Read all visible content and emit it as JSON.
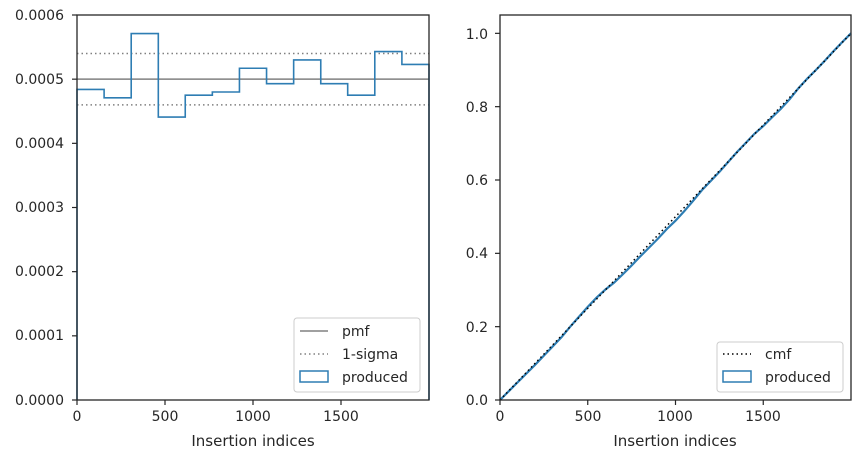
{
  "chart_data": [
    {
      "type": "step",
      "xlabel": "Insertion indices",
      "ylabel": "",
      "xlim": [
        0,
        2000
      ],
      "ylim": [
        0,
        0.0006
      ],
      "xticks": [
        0,
        500,
        1000,
        1500
      ],
      "xtick_labels": [
        "0",
        "500",
        "1000",
        "1500"
      ],
      "yticks": [
        0,
        0.0001,
        0.0002,
        0.0003,
        0.0004,
        0.0005,
        0.0006
      ],
      "ytick_labels": [
        "0.0000",
        "0.0001",
        "0.0002",
        "0.0003",
        "0.0004",
        "0.0005",
        "0.0006"
      ],
      "grid": false,
      "legend_position": "lower right",
      "reference_lines": [
        {
          "name": "pmf",
          "y": 0.0005,
          "style": "solid",
          "color": "#808080"
        },
        {
          "name": "1-sigma",
          "y": 0.00054,
          "style": "dotted",
          "color": "#808080"
        },
        {
          "name": "1-sigma",
          "y": 0.00046,
          "style": "dotted",
          "color": "#808080"
        }
      ],
      "series": [
        {
          "name": "produced",
          "color": "#2e7db3",
          "bin_edges": [
            0,
            154,
            308,
            462,
            615,
            769,
            923,
            1077,
            1231,
            1385,
            1538,
            1692,
            1846,
            2000
          ],
          "values": [
            0.000484,
            0.000471,
            0.000571,
            0.000441,
            0.000475,
            0.00048,
            0.000517,
            0.000493,
            0.00053,
            0.000493,
            0.000475,
            0.000543,
            0.000523
          ]
        }
      ],
      "legend": [
        {
          "label": "pmf",
          "kind": "solid-line"
        },
        {
          "label": "1-sigma",
          "kind": "dotted-line"
        },
        {
          "label": "produced",
          "kind": "patch"
        }
      ]
    },
    {
      "type": "line",
      "xlabel": "Insertion indices",
      "ylabel": "",
      "xlim": [
        0,
        2000
      ],
      "ylim": [
        0,
        1.05
      ],
      "xticks": [
        0,
        500,
        1000,
        1500
      ],
      "xtick_labels": [
        "0",
        "500",
        "1000",
        "1500"
      ],
      "yticks": [
        0,
        0.2,
        0.4,
        0.6,
        0.8,
        1.0
      ],
      "ytick_labels": [
        "0.0",
        "0.2",
        "0.4",
        "0.6",
        "0.8",
        "1.0"
      ],
      "grid": false,
      "legend_position": "lower right",
      "series": [
        {
          "name": "cmf",
          "style": "dotted",
          "color": "#000000",
          "x": [
            0,
            2000
          ],
          "y": [
            0,
            1.0
          ]
        },
        {
          "name": "produced",
          "style": "solid",
          "color": "#2e7db3",
          "x": [
            0,
            50,
            100,
            150,
            200,
            250,
            300,
            350,
            400,
            450,
            500,
            550,
            600,
            650,
            700,
            750,
            800,
            850,
            900,
            950,
            1000,
            1050,
            1100,
            1150,
            1200,
            1250,
            1300,
            1350,
            1400,
            1450,
            1500,
            1550,
            1600,
            1650,
            1700,
            1750,
            1800,
            1850,
            1900,
            1950,
            2000
          ],
          "y": [
            0,
            0.024,
            0.048,
            0.072,
            0.096,
            0.121,
            0.146,
            0.171,
            0.2,
            0.227,
            0.254,
            0.279,
            0.301,
            0.32,
            0.343,
            0.367,
            0.392,
            0.416,
            0.44,
            0.466,
            0.489,
            0.515,
            0.543,
            0.572,
            0.597,
            0.622,
            0.649,
            0.676,
            0.701,
            0.726,
            0.747,
            0.771,
            0.794,
            0.82,
            0.85,
            0.876,
            0.9,
            0.925,
            0.951,
            0.976,
            1.0
          ]
        }
      ],
      "legend": [
        {
          "label": "cmf",
          "kind": "dotted-line"
        },
        {
          "label": "produced",
          "kind": "patch"
        }
      ]
    }
  ]
}
